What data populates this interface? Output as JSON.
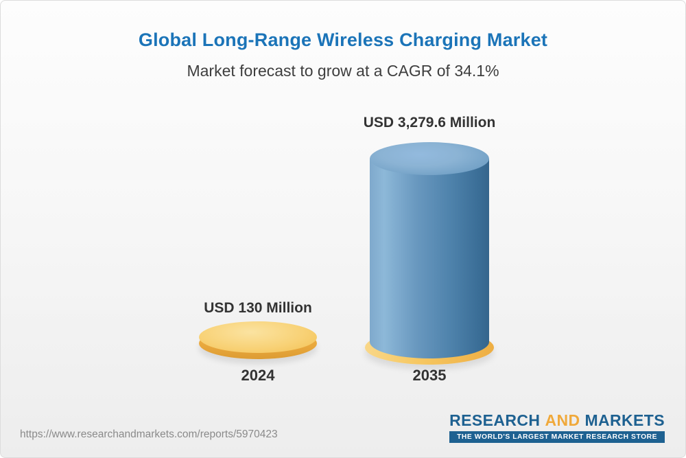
{
  "header": {
    "title": "Global Long-Range Wireless Charging Market",
    "subtitle": "Market forecast to grow at a CAGR of 34.1%"
  },
  "chart_data": {
    "type": "bar",
    "title": "Global Long-Range Wireless Charging Market",
    "subtitle": "Market forecast to grow at a CAGR of 34.1%",
    "categories": [
      "2024",
      "2035"
    ],
    "values": [
      130,
      3279.6
    ],
    "unit": "USD Million",
    "value_labels": [
      "USD 130 Million",
      "USD 3,279.6 Million"
    ],
    "cagr_percent": 34.1,
    "legend_position": "none",
    "grid": false,
    "colors": {
      "bar_2024": "#f6c65f",
      "bar_2035": "#5e93bd",
      "bar_2035_base": "#f6c65f",
      "title": "#1b74b8",
      "label_text": "#333333"
    }
  },
  "bars": [
    {
      "category": "2024",
      "value_label": "USD 130 Million"
    },
    {
      "category": "2035",
      "value_label": "USD 3,279.6 Million"
    }
  ],
  "footer": {
    "url": "https://www.researchandmarkets.com/reports/5970423",
    "logo": {
      "research": "RESEARCH",
      "and": "AND",
      "markets": "MARKETS",
      "tagline": "THE WORLD'S LARGEST MARKET RESEARCH STORE"
    }
  }
}
